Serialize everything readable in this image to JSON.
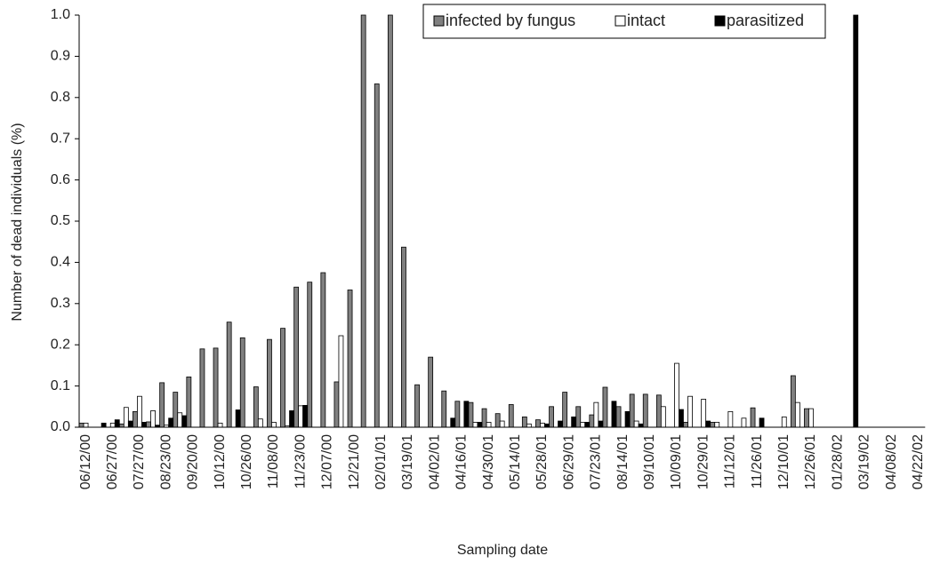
{
  "chart_data": {
    "type": "bar",
    "x_label": "Sampling date",
    "y_label": "Number of dead individuals (%)",
    "categories": [
      "06/12/00",
      null,
      "06/27/00",
      null,
      "07/27/00",
      null,
      "08/23/00",
      null,
      "09/20/00",
      null,
      "10/12/00",
      null,
      "10/26/00",
      null,
      "11/08/00",
      null,
      "11/23/00",
      null,
      "12/07/00",
      null,
      "12/21/00",
      null,
      "02/01/01",
      null,
      "03/19/01",
      null,
      "04/02/01",
      null,
      "04/16/01",
      null,
      "04/30/01",
      null,
      "05/14/01",
      null,
      "05/28/01",
      null,
      "06/29/01",
      null,
      "07/23/01",
      null,
      "08/14/01",
      null,
      "09/10/01",
      null,
      "10/09/01",
      null,
      "10/29/01",
      null,
      "11/12/01",
      null,
      "11/26/01",
      null,
      "12/10/01",
      null,
      "12/26/01",
      null,
      "01/28/02",
      null,
      "03/19/02",
      null,
      "04/08/02",
      null,
      "04/22/02"
    ],
    "series": [
      {
        "name": "infected by fungus",
        "color": "#808080",
        "values": [
          0.01,
          0,
          0,
          0.008,
          0.038,
          0.013,
          0.108,
          0.085,
          0.122,
          0.19,
          0.192,
          0.255,
          0.217,
          0.098,
          0.213,
          0.24,
          0.34,
          0.352,
          0.375,
          0.11,
          0.333,
          1.0,
          0.833,
          1.0,
          0.437,
          0.103,
          0.17,
          0.088,
          0.063,
          0.06,
          0.045,
          0.033,
          0.055,
          0.025,
          0.018,
          0.05,
          0.085,
          0.05,
          0.03,
          0.097,
          0.05,
          0.08,
          0.08,
          0.078,
          0,
          0.012,
          0,
          0.012,
          0,
          0,
          0.047,
          0,
          0,
          0.125,
          0.045,
          0,
          0,
          0,
          0,
          0,
          0,
          0,
          0
        ]
      },
      {
        "name": "intact",
        "color": "#ffffff",
        "values": [
          0.01,
          0,
          0.01,
          0.048,
          0.075,
          0.04,
          0.005,
          0.035,
          0,
          0,
          0.01,
          0,
          0,
          0.02,
          0.012,
          0.003,
          0.052,
          0,
          0,
          0.222,
          0,
          0,
          0,
          0,
          0,
          0,
          0,
          0,
          0,
          0.012,
          0.012,
          0.015,
          0,
          0.008,
          0.01,
          0,
          0,
          0.012,
          0.06,
          0,
          0,
          0.015,
          0,
          0.05,
          0.155,
          0.075,
          0.068,
          0.012,
          0.038,
          0.022,
          0,
          0,
          0.025,
          0.06,
          0.045,
          0,
          0,
          0,
          0,
          0,
          0,
          0,
          0
        ]
      },
      {
        "name": "parasitized",
        "color": "#000000",
        "values": [
          0,
          0.01,
          0.018,
          0.015,
          0.012,
          0.005,
          0.022,
          0.028,
          0,
          0,
          0,
          0.042,
          0,
          0,
          0,
          0.04,
          0.053,
          0,
          0,
          0,
          0,
          0,
          0,
          0,
          0,
          0,
          0,
          0.022,
          0.063,
          0.012,
          0,
          0,
          0,
          0,
          0.008,
          0.015,
          0.025,
          0.012,
          0.015,
          0.063,
          0.038,
          0.008,
          0,
          0,
          0.043,
          0,
          0.015,
          0,
          0,
          0,
          0.022,
          0,
          0,
          0,
          0,
          0,
          0,
          1.0,
          0,
          0,
          0,
          0,
          0
        ]
      }
    ],
    "ylim": [
      0,
      1.0
    ],
    "yticks": [
      {
        "value": 0,
        "label": "0.0"
      },
      0.1,
      0.2,
      0.3,
      0.4,
      0.5,
      0.6,
      0.7,
      0.8,
      0.9,
      {
        "value": 1.0,
        "label": "1.0"
      }
    ],
    "legend": "top-right"
  }
}
